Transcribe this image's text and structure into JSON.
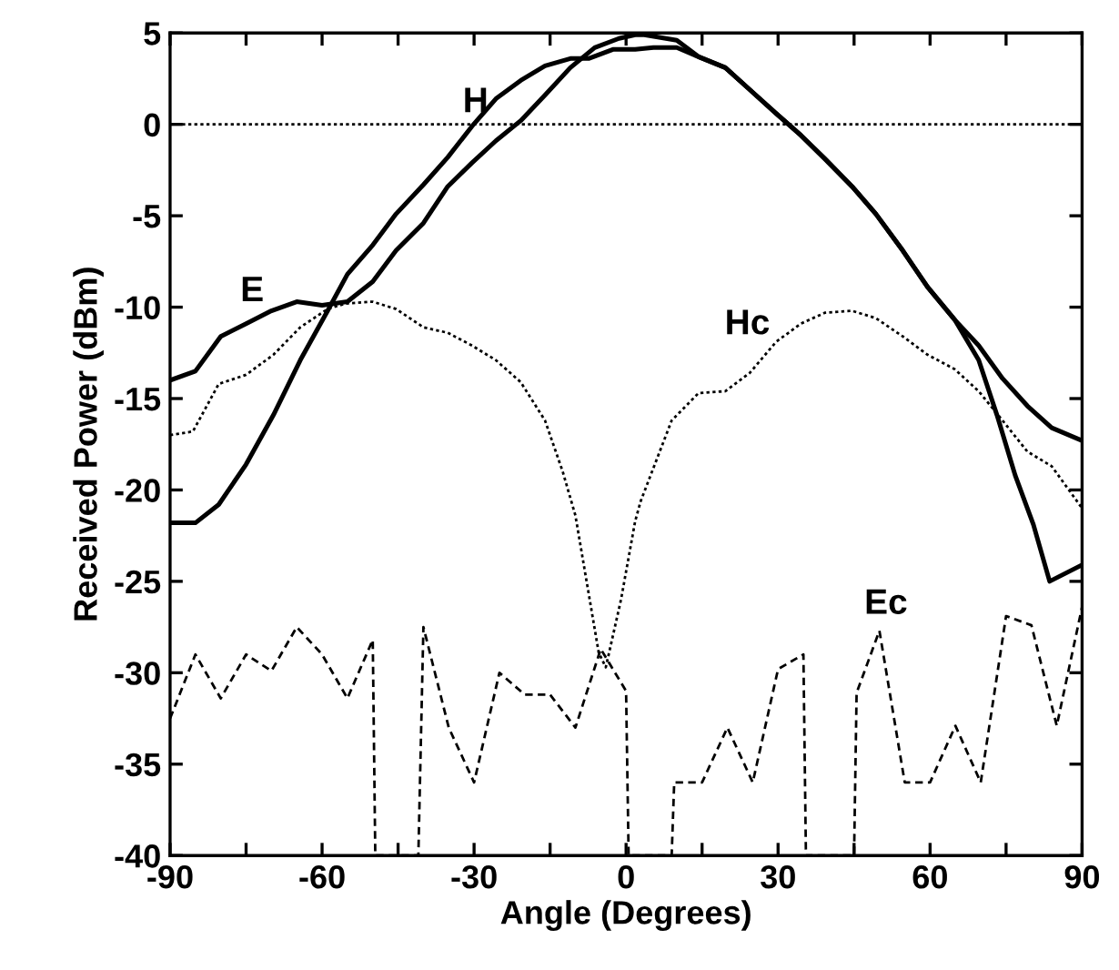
{
  "chart_data": {
    "type": "line",
    "xlabel": "Angle (Degrees)",
    "ylabel": "Received Power (dBm)",
    "xlim": [
      -90,
      90
    ],
    "ylim": [
      -40,
      5
    ],
    "xticks": [
      -90,
      {
        "value": -75,
        "label": null
      },
      -60,
      {
        "value": -45,
        "label": null
      },
      -30,
      {
        "value": -15,
        "label": null
      },
      0,
      {
        "value": 15,
        "label": null
      },
      30,
      {
        "value": 45,
        "label": null
      },
      60,
      {
        "value": 75,
        "label": null
      },
      90
    ],
    "yticks": [
      -40,
      -35,
      -30,
      -25,
      -20,
      -15,
      -10,
      -5,
      0,
      5
    ],
    "grid": false,
    "marker": "none",
    "ref_lines": [
      {
        "axis": "y",
        "value": 0,
        "color": "#000000",
        "line_style": "dotted"
      }
    ],
    "series": [
      {
        "name": "E",
        "color": "#000000",
        "line_style": "solid",
        "x": [
          -90,
          -85,
          -80,
          -75,
          -70,
          -65,
          -60,
          -55,
          -50,
          -45.4,
          -40,
          -35.2,
          -30.4,
          -25.7,
          -20.8,
          -16,
          -11,
          -6.2,
          -1.4,
          1.8,
          3.6,
          10,
          14.3,
          19.6,
          24.4,
          29.6,
          34.5,
          39.3,
          44.6,
          49.3,
          54.6,
          59.5,
          64.9,
          69.6,
          74.3,
          79.2,
          84,
          90
        ],
        "values": [
          -14.0,
          -13.5,
          -11.6,
          -10.9,
          -10.2,
          -9.7,
          -9.9,
          -9.7,
          -8.6,
          -6.9,
          -5.4,
          -3.4,
          -2.1,
          -0.9,
          0.2,
          1.6,
          3.1,
          4.2,
          4.7,
          4.9,
          4.9,
          4.6,
          3.7,
          3.1,
          1.9,
          0.6,
          -0.6,
          -1.9,
          -3.4,
          -4.9,
          -6.9,
          -8.9,
          -10.7,
          -12.1,
          -13.9,
          -15.4,
          -16.6,
          -17.3
        ]
      },
      {
        "name": "H",
        "color": "#000000",
        "line_style": "solid",
        "x": [
          -90,
          -85,
          -80.4,
          -75,
          -69.6,
          -64.3,
          -58.9,
          -55,
          -50,
          -45.4,
          -40,
          -35.2,
          -30.4,
          -25.7,
          -20.8,
          -16,
          -11,
          -7.4,
          -2.6,
          1.8,
          5.4,
          10,
          14.3,
          19.6,
          24.4,
          29.6,
          34.5,
          39.3,
          44.6,
          49.3,
          54.6,
          59.5,
          64.9,
          69.6,
          73.2,
          76.8,
          80.4,
          83.6,
          90
        ],
        "values": [
          -21.8,
          -21.8,
          -20.8,
          -18.6,
          -15.9,
          -12.9,
          -10.2,
          -8.2,
          -6.6,
          -4.9,
          -3.3,
          -1.8,
          -0.1,
          1.4,
          2.4,
          3.2,
          3.6,
          3.6,
          4.1,
          4.1,
          4.2,
          4.2,
          3.7,
          3.1,
          1.9,
          0.6,
          -0.6,
          -1.9,
          -3.4,
          -4.9,
          -6.9,
          -8.9,
          -10.7,
          -12.9,
          -15.9,
          -19.2,
          -21.9,
          -25.0,
          -24.1
        ]
      },
      {
        "name": "Hc",
        "color": "#000000",
        "line_style": "dotted",
        "x": [
          -90,
          -85.5,
          -80.4,
          -75,
          -69.6,
          -64.3,
          -58.9,
          -55.4,
          -50,
          -45.4,
          -40,
          -35.2,
          -30.4,
          -25.7,
          -20.8,
          -16,
          -12.5,
          -10,
          -5.4,
          -4,
          -1,
          1.8,
          2.9,
          9,
          14.3,
          19.6,
          24.4,
          29.6,
          34.5,
          39.3,
          44.6,
          49.3,
          54.6,
          59.5,
          64.9,
          69.6,
          74.3,
          79.2,
          84,
          90
        ],
        "values": [
          -17.0,
          -16.8,
          -14.2,
          -13.7,
          -12.6,
          -11.1,
          -10.1,
          -9.8,
          -9.7,
          -10.1,
          -11.1,
          -11.4,
          -12.1,
          -12.9,
          -14.1,
          -16.2,
          -19.0,
          -21.4,
          -28.9,
          -29.7,
          -26,
          -21.7,
          -20.6,
          -16.2,
          -14.7,
          -14.6,
          -13.6,
          -11.9,
          -10.9,
          -10.3,
          -10.2,
          -10.6,
          -11.6,
          -12.6,
          -13.4,
          -14.6,
          -16.2,
          -17.9,
          -18.7,
          -21.0
        ]
      },
      {
        "name": "Ec",
        "color": "#000000",
        "line_style": "dashed",
        "x": [
          -90,
          -85,
          -80,
          -75,
          -70,
          -65,
          -60,
          -55,
          -50,
          -49.5,
          -41,
          -40,
          -35,
          -30,
          -25,
          -20,
          -15,
          -10,
          -5,
          0,
          0.5,
          9,
          9.5,
          15,
          20,
          25,
          30,
          35,
          35.5,
          45,
          45.5,
          50,
          55,
          60,
          65,
          70,
          75,
          80,
          85,
          90
        ],
        "values": [
          -32.5,
          -29.0,
          -31.4,
          -29.0,
          -29.9,
          -27.5,
          -29.0,
          -31.4,
          -28.2,
          -40,
          -40,
          -27.5,
          -33.0,
          -36.0,
          -30.0,
          -31.2,
          -31.2,
          -33.0,
          -28.7,
          -31.0,
          -40,
          -40,
          -36.0,
          -36.0,
          -33.0,
          -36.0,
          -29.8,
          -29.0,
          -40,
          -40,
          -31.1,
          -27.7,
          -36.0,
          -36.0,
          -32.9,
          -36.0,
          -26.9,
          -27.4,
          -32.9,
          -26.4
        ]
      }
    ]
  }
}
